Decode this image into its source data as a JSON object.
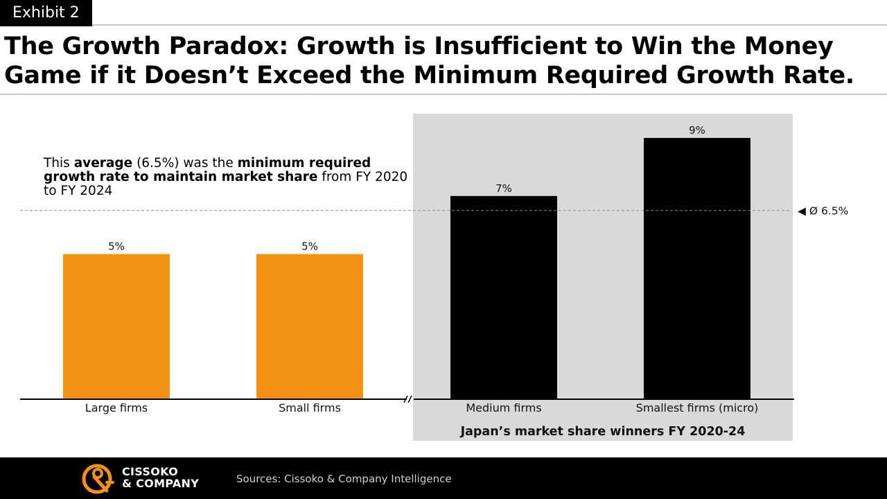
{
  "exhibit": "Exhibit 2",
  "title_line1": "The Growth Paradox: Growth is Insufficient to Win the Money",
  "title_line2": "Game if it Doesn’t Exceed the Minimum Required Growth Rate.",
  "annotation": {
    "p1": "This ",
    "b1": "average",
    "p2": " (6.5%) was the ",
    "b2": "minimum required growth rate to maintain market share",
    "p3": " from FY 2020 to FY 2024"
  },
  "footer": {
    "brand_line1": "CISSOKO",
    "brand_line2": "& COMPANY",
    "sources": "Sources: Cissoko & Company Intelligence"
  },
  "colors": {
    "orange": "#F39214",
    "black": "#000000",
    "highlight": "#D9D9D9"
  },
  "chart_data": {
    "type": "bar",
    "title": "",
    "xlabel": "",
    "ylabel": "",
    "categories": [
      "Large firms",
      "Small firms",
      "Medium firms",
      "Smallest firms (micro)"
    ],
    "values": [
      5,
      5,
      7,
      9
    ],
    "value_labels": [
      "5%",
      "5%",
      "7%",
      "9%"
    ],
    "bar_colors": [
      "#F39214",
      "#F39214",
      "#000000",
      "#000000"
    ],
    "ylim": [
      0,
      9.55
    ],
    "grid": false,
    "reference_line": {
      "value": 6.5,
      "label": "◀ Ø 6.5%"
    },
    "axis_break_after_index": 1,
    "highlight_group": {
      "indices": [
        2,
        3
      ],
      "label": "Japan’s market share winners FY 2020-24"
    }
  }
}
